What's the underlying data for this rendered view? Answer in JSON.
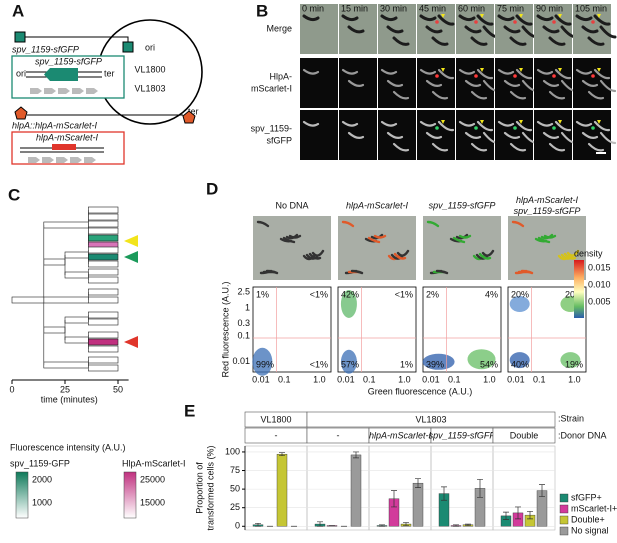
{
  "A": {
    "letter": "A",
    "plasmid": [
      "VL1800",
      "VL1803"
    ],
    "ori": "ori",
    "ter": "ter",
    "gfp_construct": "spv_1159-sfGFP",
    "gfp_box_label": "spv_1159-sfGFP",
    "box_ori": "ori",
    "box_ter": "ter",
    "red_construct": "hlpA::hlpA-mScarlet-I",
    "red_box_label": "hlpA-mScarlet-I"
  },
  "B": {
    "letter": "B",
    "rows": [
      [
        "Merge"
      ],
      [
        "HlpA-",
        "mScarlet-I"
      ],
      [
        "spv_1159-",
        "sfGFP"
      ]
    ],
    "times": [
      "0 min",
      "15 min",
      "30 min",
      "45 min",
      "60 min",
      "75 min",
      "90 min",
      "105 min"
    ]
  },
  "C": {
    "letter": "C",
    "xticks": [
      "0",
      "25",
      "50"
    ],
    "xlabel": "time (minutes)",
    "legend_title": "Fluorescence intensity (A.U.)",
    "gfp": {
      "name": "spv_1159-GFP",
      "ticks": [
        "2000",
        "1000"
      ]
    },
    "red": {
      "name": "HlpA-mScarlet-I",
      "ticks": [
        "25000",
        "15000"
      ]
    }
  },
  "D": {
    "letter": "D",
    "columns": [
      [
        "No DNA"
      ],
      [
        "hlpA-mScarlet-I"
      ],
      [
        "spv_1159-sfGFP"
      ],
      [
        "hlpA-mScarlet-I",
        "spv_1159-sfGFP"
      ]
    ],
    "density_title": "density",
    "density_ticks": [
      "0.015",
      "0.010",
      "0.005"
    ],
    "ylabel": "Red fluorescence (A.U.)",
    "xlabel": "Green fluorescence (A.U.)",
    "yticks": [
      "2.5",
      "1",
      "0.3",
      "0.1",
      "0.01"
    ],
    "xticks": [
      "0.01",
      "0.1",
      "1.0"
    ],
    "quadrants": [
      [
        "1%",
        "<1%",
        "99%",
        "<1%"
      ],
      [
        "42%",
        "<1%",
        "57%",
        "1%"
      ],
      [
        "2%",
        "4%",
        "39%",
        "54%"
      ],
      [
        "20%",
        "20%",
        "40%",
        "19%"
      ]
    ]
  },
  "chart_data": {
    "type": "bar",
    "letter": "E",
    "strain_label": ":Strain",
    "donor_label": ":Donor DNA",
    "strains": [
      {
        "name": "VL1800",
        "donors": [
          "-"
        ]
      },
      {
        "name": "VL1803",
        "donors": [
          "-",
          "hlpA-mScarlet-I",
          "spv_1159-sfGFP",
          "Double"
        ]
      }
    ],
    "ylabel": [
      "Proportion of",
      "transformed cells (%)"
    ],
    "ylim": [
      -5,
      108
    ],
    "yticks": [
      0,
      25,
      50,
      75,
      100
    ],
    "series": [
      {
        "name": "sfGFP+",
        "color": "#1b8a72",
        "values": [
          2,
          3,
          1,
          44,
          14
        ],
        "errors": [
          2,
          3,
          1,
          9,
          5
        ]
      },
      {
        "name": "mScarlet-I+",
        "color": "#d23b9b",
        "values": [
          0,
          1,
          37,
          1,
          18
        ],
        "errors": [
          0,
          0,
          11,
          1,
          8
        ]
      },
      {
        "name": "Double+",
        "color": "#c5c634",
        "values": [
          97,
          0,
          3,
          2,
          15
        ],
        "errors": [
          2,
          0,
          2,
          1,
          5
        ]
      },
      {
        "name": "No signal",
        "color": "#9a9a9a",
        "values": [
          0,
          96,
          58,
          51,
          48
        ],
        "errors": [
          0,
          4,
          6,
          12,
          8
        ]
      }
    ]
  }
}
